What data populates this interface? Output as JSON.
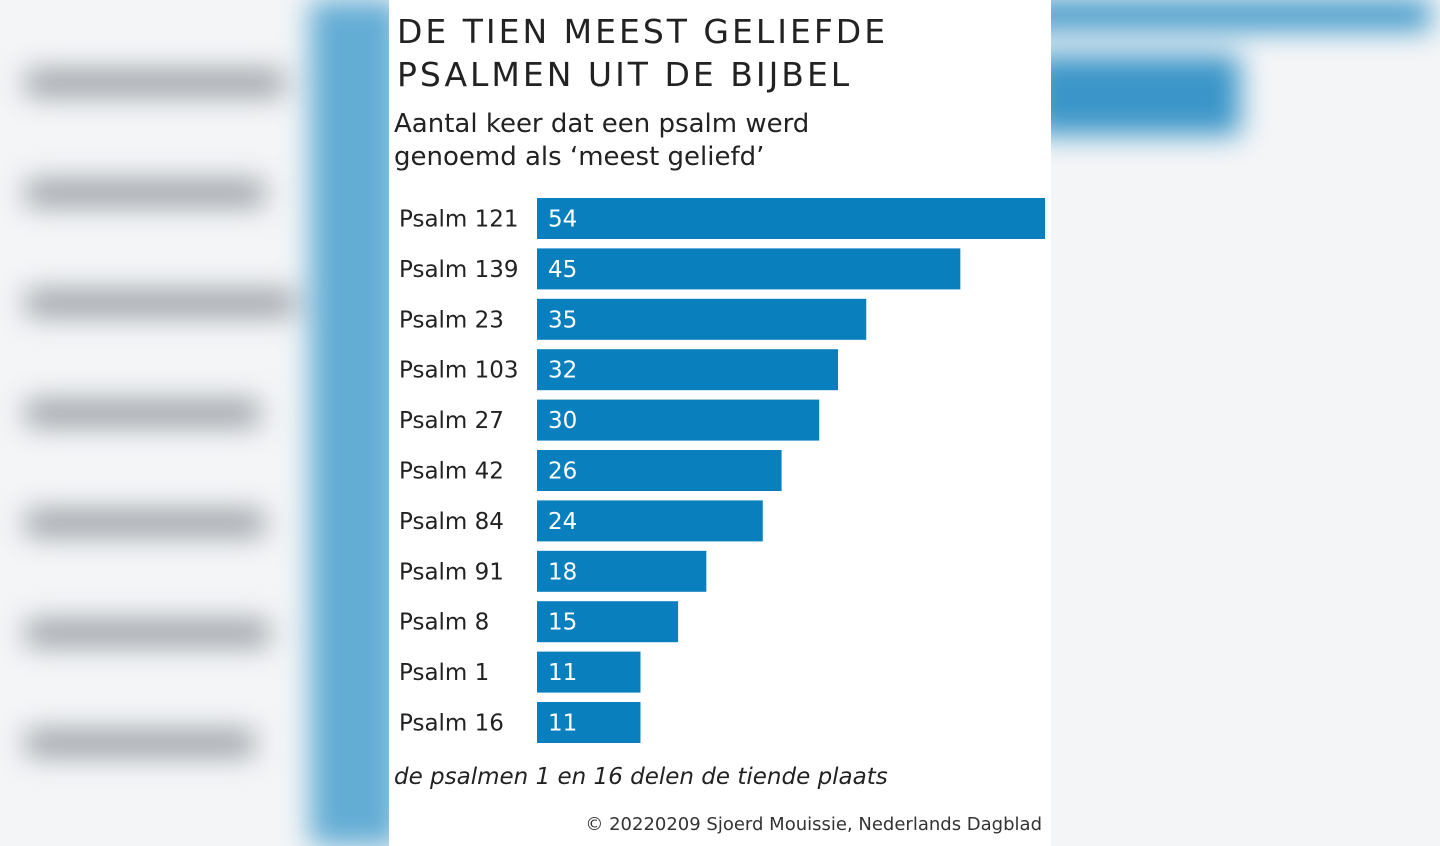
{
  "chart_data": {
    "type": "bar",
    "orientation": "horizontal",
    "title": "DE TIEN MEEST GELIEFDE PSALMEN UIT DE BIJBEL",
    "subtitle_lines": [
      "Aantal keer dat een psalm werd",
      "genoemd als ‘meest geliefd’"
    ],
    "categories": [
      "Psalm 121",
      "Psalm 139",
      "Psalm 23",
      "Psalm 103",
      "Psalm 27",
      "Psalm 42",
      "Psalm 84",
      "Psalm 91",
      "Psalm 8",
      "Psalm 1",
      "Psalm 16"
    ],
    "values": [
      54,
      45,
      35,
      32,
      30,
      26,
      24,
      18,
      15,
      11,
      11
    ],
    "xlim": [
      0,
      54
    ],
    "grid": false,
    "legend": "none",
    "bar_color": "#0a7fbd",
    "note": "de psalmen 1 en 16 delen de tiende plaats",
    "credit": "© 20220209 Sjoerd Mouissie, Nederlands Dagblad"
  },
  "colors": {
    "bar": "#0a7fbd",
    "text": "#222222",
    "background": "#ffffff"
  }
}
